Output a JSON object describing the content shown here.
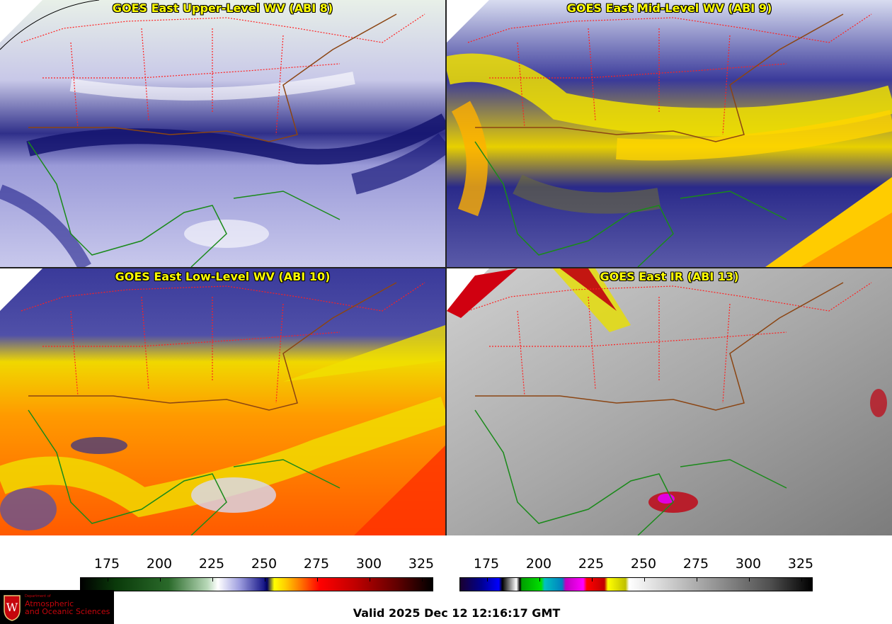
{
  "panels": [
    {
      "id": "upper",
      "title": "GOES East Upper-Level WV (ABI 8)"
    },
    {
      "id": "mid",
      "title": "GOES East Mid-Level WV (ABI 9)"
    },
    {
      "id": "low",
      "title": "GOES East Low-Level WV (ABI 10)"
    },
    {
      "id": "ir",
      "title": "GOES East IR (ABI 13)"
    }
  ],
  "colorbars": {
    "wv": {
      "ticks": [
        "175",
        "200",
        "225",
        "250",
        "275",
        "300",
        "325"
      ]
    },
    "ir": {
      "ticks": [
        "175",
        "200",
        "225",
        "250",
        "275",
        "300",
        "325"
      ]
    }
  },
  "valid_time": "Valid 2025 Dec 12 12:16:17 GMT",
  "logo": {
    "dept": "Department of",
    "line1": "Atmospheric",
    "line2": "and Oceanic Sciences"
  },
  "colors": {
    "state_borders": "#ff2020",
    "coastline_land": "#8b4513",
    "coastline_sea": "#1a8a1a",
    "title": "#ffff00"
  }
}
